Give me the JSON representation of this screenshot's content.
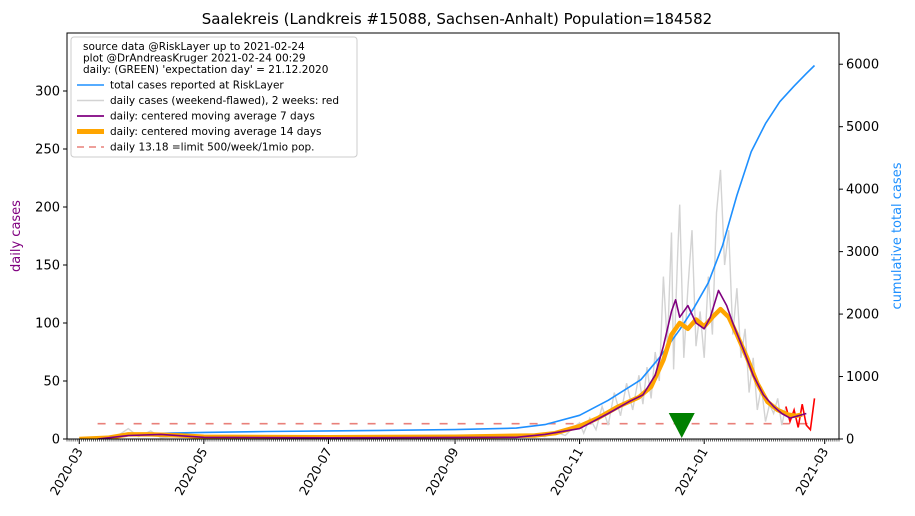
{
  "chart_data": {
    "type": "line",
    "title": "Saalekreis (Landkreis #15088, Sachsen-Anhalt) Population=184582",
    "ylabel_left": "daily cases",
    "ylabel_right": "cumulative total cases",
    "ylim_left": [
      0,
      350
    ],
    "ylim_right": [
      0,
      6500
    ],
    "yticks_left": [
      "0",
      "50",
      "100",
      "150",
      "200",
      "250",
      "300"
    ],
    "yticks_right": [
      "0",
      "1000",
      "2000",
      "3000",
      "4000",
      "5000",
      "6000"
    ],
    "xlim": [
      "2020-02-24",
      "2021-03-08"
    ],
    "xticks": [
      "2020-03",
      "2020-05",
      "2020-07",
      "2020-09",
      "2020-11",
      "2021-01",
      "2021-03"
    ],
    "grid": false,
    "legend_placement": "top-left",
    "legend_header": [
      "source data @RiskLayer up to 2021-02-24",
      "plot @DrAndreasKruger 2021-02-24 00:29",
      "daily: (GREEN) 'expectation day' = 21.12.2020"
    ],
    "expectation_day": "2020-12-21",
    "limit_value": 13.18,
    "series": [
      {
        "name": "total cases reported at RiskLayer",
        "color": "#1e90ff",
        "axis": "right",
        "points": [
          [
            "2020-03-01",
            0
          ],
          [
            "2020-03-15",
            40
          ],
          [
            "2020-04-01",
            80
          ],
          [
            "2020-04-15",
            95
          ],
          [
            "2020-05-01",
            105
          ],
          [
            "2020-06-01",
            120
          ],
          [
            "2020-07-01",
            130
          ],
          [
            "2020-08-01",
            140
          ],
          [
            "2020-09-01",
            150
          ],
          [
            "2020-10-01",
            175
          ],
          [
            "2020-10-15",
            230
          ],
          [
            "2020-11-01",
            380
          ],
          [
            "2020-11-15",
            620
          ],
          [
            "2020-12-01",
            950
          ],
          [
            "2020-12-10",
            1300
          ],
          [
            "2020-12-20",
            1750
          ],
          [
            "2020-12-27",
            2100
          ],
          [
            "2021-01-03",
            2500
          ],
          [
            "2021-01-10",
            3100
          ],
          [
            "2021-01-17",
            3900
          ],
          [
            "2021-01-24",
            4600
          ],
          [
            "2021-01-31",
            5050
          ],
          [
            "2021-02-07",
            5400
          ],
          [
            "2021-02-14",
            5650
          ],
          [
            "2021-02-20",
            5850
          ],
          [
            "2021-02-24",
            5980
          ]
        ]
      },
      {
        "name": "daily cases (weekend-flawed), 2 weeks: red",
        "color": "#d3d3d3",
        "recent_color": "#ff0000",
        "axis": "left",
        "points": [
          [
            "2020-03-10",
            0
          ],
          [
            "2020-03-20",
            3
          ],
          [
            "2020-03-25",
            9
          ],
          [
            "2020-03-30",
            2
          ],
          [
            "2020-04-05",
            7
          ],
          [
            "2020-04-10",
            1
          ],
          [
            "2020-04-20",
            3
          ],
          [
            "2020-05-01",
            1
          ],
          [
            "2020-06-01",
            0
          ],
          [
            "2020-07-01",
            1
          ],
          [
            "2020-08-01",
            0
          ],
          [
            "2020-09-01",
            1
          ],
          [
            "2020-10-01",
            1
          ],
          [
            "2020-10-10",
            4
          ],
          [
            "2020-10-15",
            2
          ],
          [
            "2020-10-20",
            6
          ],
          [
            "2020-10-25",
            3
          ],
          [
            "2020-10-29",
            10
          ],
          [
            "2020-11-01",
            14
          ],
          [
            "2020-11-03",
            5
          ],
          [
            "2020-11-06",
            18
          ],
          [
            "2020-11-09",
            8
          ],
          [
            "2020-11-12",
            28
          ],
          [
            "2020-11-15",
            12
          ],
          [
            "2020-11-18",
            40
          ],
          [
            "2020-11-21",
            20
          ],
          [
            "2020-11-24",
            48
          ],
          [
            "2020-11-27",
            25
          ],
          [
            "2020-11-30",
            55
          ],
          [
            "2020-12-02",
            30
          ],
          [
            "2020-12-04",
            62
          ],
          [
            "2020-12-06",
            35
          ],
          [
            "2020-12-08",
            75
          ],
          [
            "2020-12-10",
            50
          ],
          [
            "2020-12-12",
            140
          ],
          [
            "2020-12-14",
            80
          ],
          [
            "2020-12-16",
            178
          ],
          [
            "2020-12-17",
            60
          ],
          [
            "2020-12-19",
            160
          ],
          [
            "2020-12-20",
            202
          ],
          [
            "2020-12-22",
            70
          ],
          [
            "2020-12-24",
            130
          ],
          [
            "2020-12-26",
            180
          ],
          [
            "2020-12-28",
            80
          ],
          [
            "2020-12-30",
            110
          ],
          [
            "2021-01-01",
            70
          ],
          [
            "2021-01-03",
            140
          ],
          [
            "2021-01-05",
            90
          ],
          [
            "2021-01-07",
            195
          ],
          [
            "2021-01-09",
            232
          ],
          [
            "2021-01-11",
            150
          ],
          [
            "2021-01-13",
            180
          ],
          [
            "2021-01-15",
            90
          ],
          [
            "2021-01-17",
            130
          ],
          [
            "2021-01-19",
            70
          ],
          [
            "2021-01-21",
            95
          ],
          [
            "2021-01-23",
            40
          ],
          [
            "2021-01-25",
            70
          ],
          [
            "2021-01-27",
            25
          ],
          [
            "2021-01-29",
            45
          ],
          [
            "2021-01-31",
            15
          ],
          [
            "2021-02-02",
            30
          ],
          [
            "2021-02-04",
            22
          ],
          [
            "2021-02-06",
            35
          ],
          [
            "2021-02-08",
            12
          ],
          [
            "2021-02-10",
            28
          ],
          [
            "2021-02-12",
            15
          ],
          [
            "2021-02-14",
            25
          ],
          [
            "2021-02-16",
            10
          ],
          [
            "2021-02-18",
            30
          ],
          [
            "2021-02-20",
            12
          ],
          [
            "2021-02-22",
            8
          ],
          [
            "2021-02-24",
            35
          ]
        ]
      },
      {
        "name": "daily: centered moving average 7 days",
        "color": "#800080",
        "axis": "left",
        "points": [
          [
            "2020-03-10",
            0
          ],
          [
            "2020-03-25",
            3
          ],
          [
            "2020-04-10",
            4
          ],
          [
            "2020-05-01",
            1.5
          ],
          [
            "2020-07-01",
            1
          ],
          [
            "2020-10-01",
            1.5
          ],
          [
            "2020-10-15",
            4
          ],
          [
            "2020-11-01",
            9
          ],
          [
            "2020-11-15",
            22
          ],
          [
            "2020-11-25",
            32
          ],
          [
            "2020-12-02",
            38
          ],
          [
            "2020-12-08",
            55
          ],
          [
            "2020-12-12",
            80
          ],
          [
            "2020-12-16",
            110
          ],
          [
            "2020-12-18",
            120
          ],
          [
            "2020-12-20",
            105
          ],
          [
            "2020-12-24",
            115
          ],
          [
            "2020-12-28",
            100
          ],
          [
            "2021-01-01",
            95
          ],
          [
            "2021-01-04",
            105
          ],
          [
            "2021-01-08",
            128
          ],
          [
            "2021-01-12",
            115
          ],
          [
            "2021-01-15",
            100
          ],
          [
            "2021-01-20",
            78
          ],
          [
            "2021-01-25",
            55
          ],
          [
            "2021-01-30",
            38
          ],
          [
            "2021-02-04",
            28
          ],
          [
            "2021-02-08",
            22
          ],
          [
            "2021-02-12",
            18
          ],
          [
            "2021-02-16",
            20
          ],
          [
            "2021-02-20",
            22
          ]
        ]
      },
      {
        "name": "daily: centered moving average 14 days",
        "color": "#ffa500",
        "axis": "left",
        "points": [
          [
            "2020-03-01",
            0
          ],
          [
            "2020-03-15",
            1
          ],
          [
            "2020-03-25",
            4
          ],
          [
            "2020-04-05",
            4
          ],
          [
            "2020-04-20",
            3
          ],
          [
            "2020-05-01",
            2
          ],
          [
            "2020-07-01",
            1.5
          ],
          [
            "2020-09-01",
            2
          ],
          [
            "2020-10-10",
            3
          ],
          [
            "2020-10-20",
            5
          ],
          [
            "2020-11-01",
            11
          ],
          [
            "2020-11-10",
            18
          ],
          [
            "2020-11-20",
            28
          ],
          [
            "2020-11-30",
            36
          ],
          [
            "2020-12-06",
            45
          ],
          [
            "2020-12-12",
            68
          ],
          [
            "2020-12-16",
            90
          ],
          [
            "2020-12-20",
            100
          ],
          [
            "2020-12-24",
            95
          ],
          [
            "2020-12-28",
            103
          ],
          [
            "2021-01-01",
            97
          ],
          [
            "2021-01-05",
            105
          ],
          [
            "2021-01-09",
            112
          ],
          [
            "2021-01-13",
            105
          ],
          [
            "2021-01-17",
            90
          ],
          [
            "2021-01-22",
            70
          ],
          [
            "2021-01-27",
            48
          ],
          [
            "2021-02-01",
            32
          ],
          [
            "2021-02-06",
            25
          ],
          [
            "2021-02-11",
            21
          ],
          [
            "2021-02-15",
            20
          ],
          [
            "2021-02-18",
            21
          ]
        ]
      },
      {
        "name": "daily 13.18 =limit 500/week/1mio pop.",
        "color": "#e9807a",
        "axis": "left",
        "dashed": true,
        "points": [
          [
            "2020-03-10",
            13.18
          ],
          [
            "2021-02-24",
            13.18
          ]
        ]
      }
    ]
  }
}
